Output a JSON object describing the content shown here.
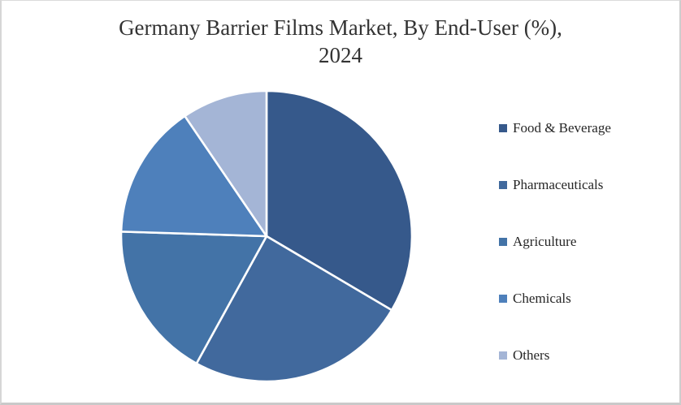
{
  "frame": {
    "background": "#FFFFFF",
    "border_color": "#CFCFCF"
  },
  "title": {
    "line1": "Germany Barrier Films Market, By End-User (%),",
    "line2": "2024",
    "color": "#333333"
  },
  "chart_data": {
    "type": "pie",
    "title": "Germany Barrier Films Market, By End-User (%), 2024",
    "categories": [
      "Food & Beverage",
      "Pharmaceuticals",
      "Agriculture",
      "Chemicals",
      "Others"
    ],
    "values": [
      33.5,
      24.5,
      17.5,
      15.0,
      9.5
    ],
    "unit": "%",
    "colors": [
      "#36598B",
      "#41699D",
      "#4373A7",
      "#4E80BB",
      "#A4B5D6"
    ],
    "start_angle_deg": 0,
    "direction": "clockwise",
    "slice_border_color": "#FFFFFF",
    "slice_border_width": 2.6,
    "data_labels": false,
    "legend_position": "right",
    "legend_marker": "square"
  }
}
